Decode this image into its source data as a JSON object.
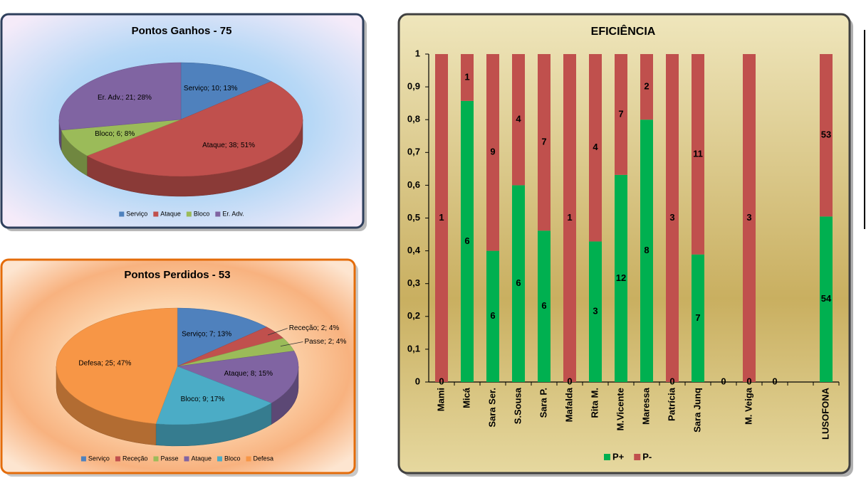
{
  "chart_data": [
    {
      "type": "pie",
      "title": "Pontos Ganhos - 75",
      "categories": [
        "Serviço",
        "Ataque",
        "Bloco",
        "Er. Adv."
      ],
      "values": [
        10,
        38,
        6,
        21
      ],
      "value_labels": [
        "Serviço; 10; 13%",
        "Ataque; 38; 51%",
        "Bloco; 6; 8%",
        "Er. Adv.; 21; 28%"
      ],
      "colors": [
        "#4f81bd",
        "#c0504d",
        "#9bbb59",
        "#8064a2"
      ],
      "legend": "bottom"
    },
    {
      "type": "pie",
      "title": "Pontos Perdidos - 53",
      "categories": [
        "Serviço",
        "Receção",
        "Passe",
        "Ataque",
        "Bloco",
        "Defesa"
      ],
      "values": [
        7,
        2,
        2,
        8,
        9,
        25
      ],
      "value_labels": [
        "Serviço; 7; 13%",
        "Receção; 2; 4%",
        "Passe; 2; 4%",
        "Ataque; 8; 15%",
        "Bloco; 9; 17%",
        "Defesa; 25; 47%"
      ],
      "colors": [
        "#4f81bd",
        "#c0504d",
        "#9bbb59",
        "#8064a2",
        "#4bacc6",
        "#f79646"
      ],
      "legend": "bottom"
    },
    {
      "type": "bar",
      "title": "EFICIÊNCIA",
      "stacking": "percent",
      "categories": [
        "Mami",
        "Micá",
        "Sara Ser.",
        "S.Sousa",
        "Sara P.",
        "Mafalda",
        "Rita M.",
        "M.Vicente",
        "Maressa",
        "Patrícia",
        "Sara Junq",
        null,
        "M. Veiga",
        null,
        null,
        "LUSOFONA"
      ],
      "series": [
        {
          "name": "P+",
          "color": "#00b050",
          "values": [
            0,
            6,
            6,
            6,
            6,
            0,
            3,
            12,
            8,
            0,
            7,
            0,
            0,
            0,
            null,
            54
          ]
        },
        {
          "name": "P-",
          "color": "#c0504d",
          "values": [
            1,
            1,
            9,
            4,
            7,
            1,
            4,
            7,
            2,
            3,
            11,
            null,
            3,
            null,
            null,
            53
          ]
        }
      ],
      "ylim": [
        0,
        1
      ],
      "yticks": [
        0,
        {
          "value": 0.1,
          "label": "0,1"
        },
        {
          "value": 0.2,
          "label": "0,2"
        },
        {
          "value": 0.3,
          "label": "0,3"
        },
        {
          "value": 0.4,
          "label": "0,4"
        },
        {
          "value": 0.5,
          "label": "0,5"
        },
        {
          "value": 0.6,
          "label": "0,6"
        },
        {
          "value": 0.7,
          "label": "0,7"
        },
        {
          "value": 0.8,
          "label": "0,8"
        },
        {
          "value": 0.9,
          "label": "0,9"
        },
        1
      ],
      "grid": false,
      "legend": "bottom"
    }
  ]
}
